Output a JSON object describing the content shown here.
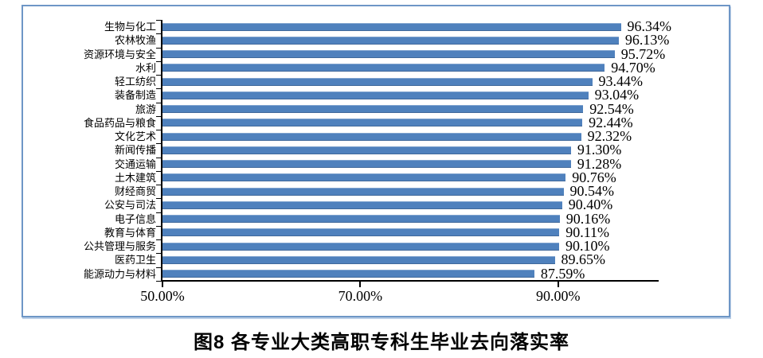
{
  "chart_data": {
    "type": "bar",
    "orientation": "horizontal",
    "title": "图8  各专业大类高职专科生毕业去向落实率",
    "categories": [
      "生物与化工",
      "农林牧渔",
      "资源环境与安全",
      "水利",
      "轻工纺织",
      "装备制造",
      "旅游",
      "食品药品与粮食",
      "文化艺术",
      "新闻传播",
      "交通运输",
      "土木建筑",
      "财经商贸",
      "公安与司法",
      "电子信息",
      "教育与体育",
      "公共管理与服务",
      "医药卫生",
      "能源动力与材料"
    ],
    "values": [
      96.34,
      96.13,
      95.72,
      94.7,
      93.44,
      93.04,
      92.54,
      92.44,
      92.32,
      91.3,
      91.28,
      90.76,
      90.54,
      90.4,
      90.16,
      90.11,
      90.1,
      89.65,
      87.59
    ],
    "value_labels": [
      "96.34%",
      "96.13%",
      "95.72%",
      "94.70%",
      "93.44%",
      "93.04%",
      "92.54%",
      "92.44%",
      "92.32%",
      "91.30%",
      "91.28%",
      "90.76%",
      "90.54%",
      "90.40%",
      "90.16%",
      "90.11%",
      "90.10%",
      "89.65%",
      "87.59%"
    ],
    "x_ticks": [
      {
        "value": 50,
        "label": "50.00%"
      },
      {
        "value": 70,
        "label": "70.00%"
      },
      {
        "value": 90,
        "label": "90.00%"
      }
    ],
    "xlim": [
      50,
      100
    ],
    "grid": false,
    "legend": null,
    "bar_color": "#4F81BD",
    "axis_color": "#000000",
    "frame_border_color": "#6E96C6"
  }
}
